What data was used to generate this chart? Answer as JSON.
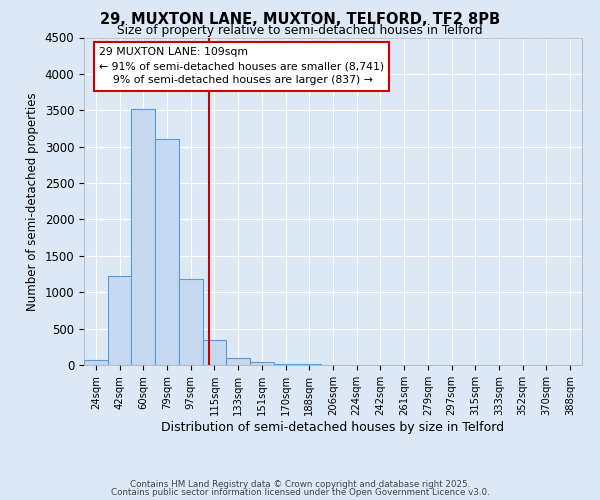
{
  "title": "29, MUXTON LANE, MUXTON, TELFORD, TF2 8PB",
  "subtitle": "Size of property relative to semi-detached houses in Telford",
  "xlabel": "Distribution of semi-detached houses by size in Telford",
  "ylabel": "Number of semi-detached properties",
  "bin_labels": [
    "24sqm",
    "42sqm",
    "60sqm",
    "79sqm",
    "97sqm",
    "115sqm",
    "133sqm",
    "151sqm",
    "170sqm",
    "188sqm",
    "206sqm",
    "224sqm",
    "242sqm",
    "261sqm",
    "279sqm",
    "297sqm",
    "315sqm",
    "333sqm",
    "352sqm",
    "370sqm",
    "388sqm"
  ],
  "bar_values": [
    75,
    1220,
    3520,
    3100,
    1175,
    345,
    100,
    45,
    15,
    8,
    3,
    2,
    0,
    0,
    0,
    0,
    0,
    0,
    0,
    0,
    0
  ],
  "bar_color": "#c5d8f0",
  "bar_edge_color": "#5b9bd5",
  "vline_index": 4.78,
  "annotation_line1": "29 MUXTON LANE: 109sqm",
  "annotation_line2": "← 91% of semi-detached houses are smaller (8,741)",
  "annotation_line3": "    9% of semi-detached houses are larger (837) →",
  "annotation_box_color": "#ffffff",
  "annotation_box_edge": "#cc0000",
  "vline_color": "#cc0000",
  "ylim": [
    0,
    4500
  ],
  "xlim": [
    -0.5,
    20.5
  ],
  "background_color": "#dce8f5",
  "grid_color": "#ffffff",
  "footer_line1": "Contains HM Land Registry data © Crown copyright and database right 2025.",
  "footer_line2": "Contains public sector information licensed under the Open Government Licence v3.0."
}
